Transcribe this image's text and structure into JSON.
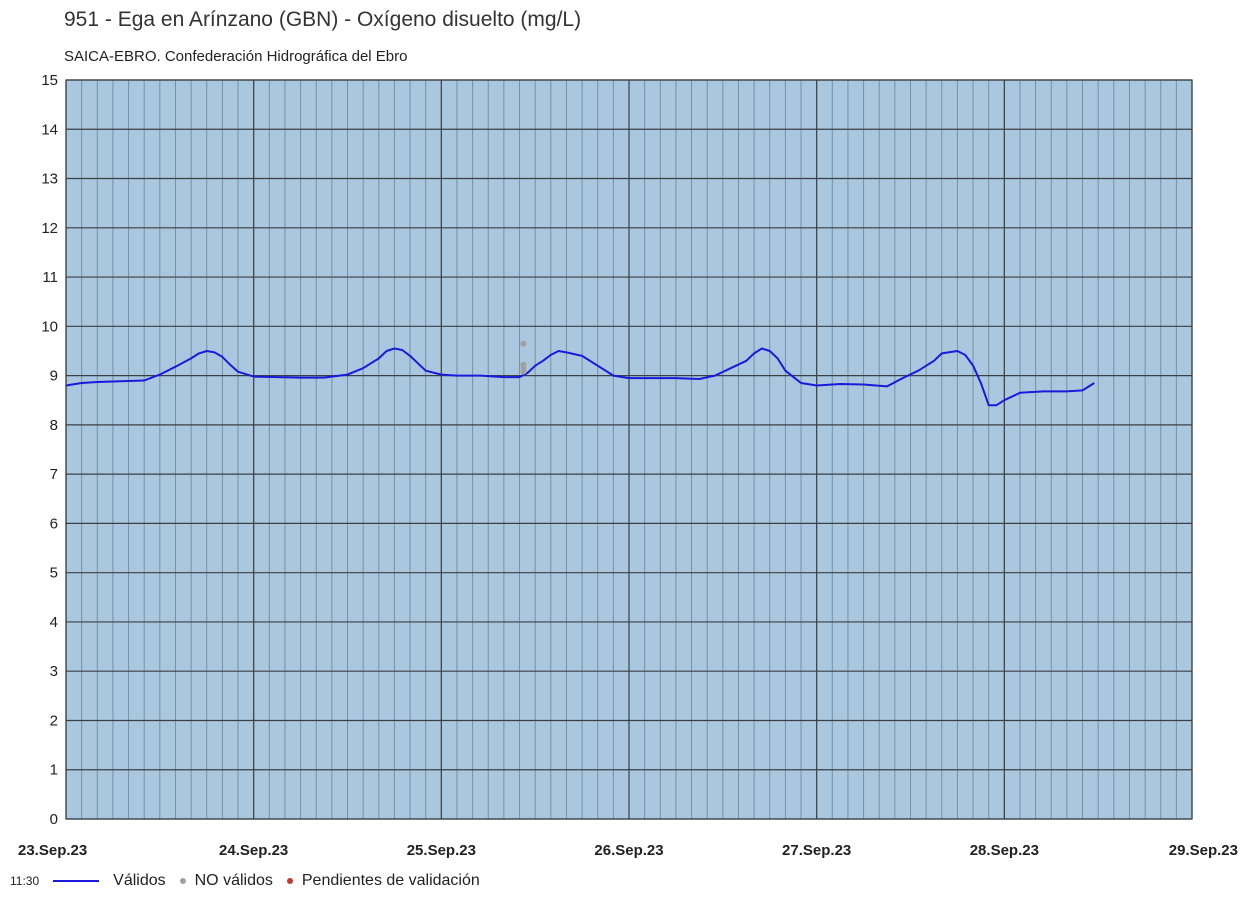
{
  "title": "951 - Ega en Arínzano (GBN) - Oxígeno disuelto (mg/L)",
  "subtitle": "SAICA-EBRO. Confederación Hidrográfica del Ebro",
  "legend": {
    "time": "11:30",
    "valid_label": "Válidos",
    "invalid_label": "NO válidos",
    "pending_label": "Pendientes de validación"
  },
  "colors": {
    "plot_bg": "#a9c8e0",
    "minor_grid": "#7e8e9c",
    "major_grid": "#3a3f44",
    "valid_line": "#1a1adb",
    "invalid_point": "#a0a0a0",
    "pending_point": "#c0392b"
  },
  "chart_data": {
    "type": "line",
    "title": "951 - Ega en Arínzano (GBN) - Oxígeno disuelto (mg/L)",
    "subtitle": "SAICA-EBRO. Confederación Hidrográfica del Ebro",
    "xlabel": "",
    "ylabel": "",
    "ylim": [
      0,
      15
    ],
    "yticks": [
      0,
      1,
      2,
      3,
      4,
      5,
      6,
      7,
      8,
      9,
      10,
      11,
      12,
      13,
      14,
      15
    ],
    "xlim": [
      "2023-09-23T00:00",
      "2023-09-29T00:00"
    ],
    "xticks": [
      {
        "date": "2023-09-23T00:00",
        "label": "23.Sep.23"
      },
      {
        "date": "2023-09-24T00:00",
        "label": "24.Sep.23"
      },
      {
        "date": "2023-09-25T00:00",
        "label": "25.Sep.23"
      },
      {
        "date": "2023-09-26T00:00",
        "label": "26.Sep.23"
      },
      {
        "date": "2023-09-27T00:00",
        "label": "27.Sep.23"
      },
      {
        "date": "2023-09-28T00:00",
        "label": "28.Sep.23"
      },
      {
        "date": "2023-09-29T00:00",
        "label": "29.Sep.23"
      }
    ],
    "grid": true,
    "minor_grid_hours": 2,
    "legend_position": "bottom-left",
    "series": [
      {
        "name": "Válidos",
        "style": "line",
        "points": [
          [
            "2023-09-23T00:00",
            8.8
          ],
          [
            "2023-09-23T02:00",
            8.85
          ],
          [
            "2023-09-23T04:00",
            8.87
          ],
          [
            "2023-09-23T06:00",
            8.88
          ],
          [
            "2023-09-23T08:00",
            8.89
          ],
          [
            "2023-09-23T10:00",
            8.9
          ],
          [
            "2023-09-23T12:00",
            9.02
          ],
          [
            "2023-09-23T14:00",
            9.18
          ],
          [
            "2023-09-23T16:00",
            9.35
          ],
          [
            "2023-09-23T17:00",
            9.45
          ],
          [
            "2023-09-23T18:00",
            9.5
          ],
          [
            "2023-09-23T19:00",
            9.47
          ],
          [
            "2023-09-23T20:00",
            9.38
          ],
          [
            "2023-09-23T21:00",
            9.22
          ],
          [
            "2023-09-23T22:00",
            9.08
          ],
          [
            "2023-09-24T00:00",
            8.98
          ],
          [
            "2023-09-24T03:00",
            8.97
          ],
          [
            "2023-09-24T06:00",
            8.96
          ],
          [
            "2023-09-24T09:00",
            8.96
          ],
          [
            "2023-09-24T12:00",
            9.02
          ],
          [
            "2023-09-24T14:00",
            9.15
          ],
          [
            "2023-09-24T16:00",
            9.35
          ],
          [
            "2023-09-24T17:00",
            9.5
          ],
          [
            "2023-09-24T18:00",
            9.55
          ],
          [
            "2023-09-24T19:00",
            9.52
          ],
          [
            "2023-09-24T20:00",
            9.4
          ],
          [
            "2023-09-24T21:00",
            9.25
          ],
          [
            "2023-09-24T22:00",
            9.1
          ],
          [
            "2023-09-25T00:00",
            9.02
          ],
          [
            "2023-09-25T02:00",
            9.0
          ],
          [
            "2023-09-25T05:00",
            9.0
          ],
          [
            "2023-09-25T08:00",
            8.97
          ],
          [
            "2023-09-25T10:00",
            8.97
          ],
          [
            "2023-09-25T11:00",
            9.05
          ],
          [
            "2023-09-25T12:00",
            9.2
          ],
          [
            "2023-09-25T13:00",
            9.3
          ],
          [
            "2023-09-25T14:00",
            9.42
          ],
          [
            "2023-09-25T15:00",
            9.5
          ],
          [
            "2023-09-25T16:00",
            9.47
          ],
          [
            "2023-09-25T18:00",
            9.4
          ],
          [
            "2023-09-25T20:00",
            9.2
          ],
          [
            "2023-09-25T22:00",
            9.0
          ],
          [
            "2023-09-26T00:00",
            8.95
          ],
          [
            "2023-09-26T03:00",
            8.95
          ],
          [
            "2023-09-26T06:00",
            8.95
          ],
          [
            "2023-09-26T09:00",
            8.93
          ],
          [
            "2023-09-26T11:00",
            9.0
          ],
          [
            "2023-09-26T13:00",
            9.15
          ],
          [
            "2023-09-26T15:00",
            9.3
          ],
          [
            "2023-09-26T16:00",
            9.45
          ],
          [
            "2023-09-26T17:00",
            9.55
          ],
          [
            "2023-09-26T18:00",
            9.5
          ],
          [
            "2023-09-26T19:00",
            9.35
          ],
          [
            "2023-09-26T20:00",
            9.1
          ],
          [
            "2023-09-26T22:00",
            8.85
          ],
          [
            "2023-09-27T00:00",
            8.8
          ],
          [
            "2023-09-27T03:00",
            8.83
          ],
          [
            "2023-09-27T06:00",
            8.82
          ],
          [
            "2023-09-27T09:00",
            8.78
          ],
          [
            "2023-09-27T11:00",
            8.95
          ],
          [
            "2023-09-27T13:00",
            9.1
          ],
          [
            "2023-09-27T15:00",
            9.3
          ],
          [
            "2023-09-27T16:00",
            9.45
          ],
          [
            "2023-09-27T18:00",
            9.5
          ],
          [
            "2023-09-27T19:00",
            9.42
          ],
          [
            "2023-09-27T20:00",
            9.2
          ],
          [
            "2023-09-27T21:00",
            8.85
          ],
          [
            "2023-09-27T22:00",
            8.4
          ],
          [
            "2023-09-27T23:00",
            8.4
          ],
          [
            "2023-09-28T00:00",
            8.5
          ],
          [
            "2023-09-28T02:00",
            8.65
          ],
          [
            "2023-09-28T05:00",
            8.68
          ],
          [
            "2023-09-28T08:00",
            8.68
          ],
          [
            "2023-09-28T10:00",
            8.7
          ],
          [
            "2023-09-28T11:30",
            8.85
          ]
        ]
      },
      {
        "name": "NO válidos",
        "style": "points",
        "points": [
          [
            "2023-09-25T10:30",
            9.65
          ],
          [
            "2023-09-25T10:30",
            9.22
          ],
          [
            "2023-09-25T10:30",
            9.15
          ],
          [
            "2023-09-25T10:30",
            9.08
          ]
        ]
      }
    ]
  }
}
